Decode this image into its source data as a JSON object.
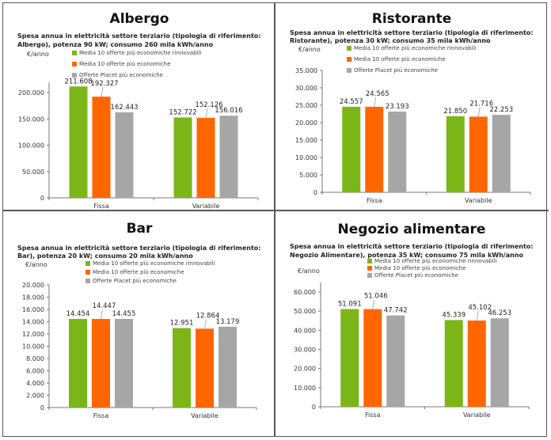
{
  "colors": {
    "green": "#7cb518",
    "orange": "#ff6600",
    "gray": "#a6a6a6"
  },
  "chart_data": [
    {
      "type": "bar",
      "title": "Albergo",
      "subtitle_line1": "Spesa annua in elettricità settore terziario (tipologia di riferimento:",
      "subtitle_line2": "Albergo), potenza 90 kW; consumo 260 mila kWh/anno",
      "ylabel": "€/anno",
      "xlabel": "",
      "categories": [
        "Fissa",
        "Variabile"
      ],
      "ylim": [
        0,
        220000
      ],
      "yticks": [
        0,
        50000,
        100000,
        150000,
        200000
      ],
      "ytick_labels": [
        "0",
        "50.000",
        "100.000",
        "150.000",
        "200.000"
      ],
      "grid": false,
      "legend_position": "top-center",
      "series": [
        {
          "name": "Media 10 offerte più economiche rinnovabili",
          "color": "green",
          "values": [
            211608,
            152722
          ],
          "labels": [
            "211.608",
            "152.722"
          ]
        },
        {
          "name": "Media 10 offerte più economiche",
          "color": "orange",
          "values": [
            192327,
            152126
          ],
          "labels": [
            "192.327",
            "152.126"
          ]
        },
        {
          "name": "Offerte Placet più economiche",
          "color": "gray",
          "values": [
            162443,
            156016
          ],
          "labels": [
            "162.443",
            "156.016"
          ]
        }
      ]
    },
    {
      "type": "bar",
      "title": "Ristorante",
      "subtitle_line1": "Spesa annua in elettricità settore terziario (tipologia di riferimento:",
      "subtitle_line2": "Ristorante), potenza 30 kW; consumo 35 mila kWh/anno",
      "ylabel": "€/anno",
      "xlabel": "",
      "categories": [
        "Fissa",
        "Variabile"
      ],
      "ylim": [
        0,
        35000
      ],
      "yticks": [
        0,
        5000,
        10000,
        15000,
        20000,
        25000,
        30000,
        35000
      ],
      "ytick_labels": [
        "0",
        "5.000",
        "10.000",
        "15.000",
        "20.000",
        "25.000",
        "30.000",
        "35.000"
      ],
      "grid": false,
      "legend_position": "top-center",
      "series": [
        {
          "name": "Media 10 offerte più economiche rinnovabili",
          "color": "green",
          "values": [
            24557,
            21850
          ],
          "labels": [
            "24.557",
            "21.850"
          ]
        },
        {
          "name": "Media 10 offerte più economiche",
          "color": "orange",
          "values": [
            24565,
            21716
          ],
          "labels": [
            "24.565",
            "21.716"
          ]
        },
        {
          "name": "Offerte Placet più economiche",
          "color": "gray",
          "values": [
            23193,
            22253
          ],
          "labels": [
            "23.193",
            "22.253"
          ]
        }
      ]
    },
    {
      "type": "bar",
      "title": "Bar",
      "subtitle_line1": "Spesa annua in elettricità settore terziario (tipologia di riferimento:",
      "subtitle_line2": "Bar), potenza 20 kW; consumo 20 mila kWh/anno",
      "ylabel": "€/anno",
      "xlabel": "",
      "categories": [
        "Fissa",
        "Variabile"
      ],
      "ylim": [
        0,
        20000
      ],
      "yticks": [
        0,
        2000,
        4000,
        6000,
        8000,
        10000,
        12000,
        14000,
        16000,
        18000,
        20000
      ],
      "ytick_labels": [
        "0",
        "2.000",
        "4.000",
        "6.000",
        "8.000",
        "10.000",
        "12.000",
        "14.000",
        "16.000",
        "18.000",
        "20.000"
      ],
      "grid": false,
      "legend_position": "top-center",
      "series": [
        {
          "name": "Media 10 offerte più economiche rinnovabili",
          "color": "green",
          "values": [
            14454,
            12951
          ],
          "labels": [
            "14.454",
            "12.951"
          ]
        },
        {
          "name": "Media 10 offerte più economiche",
          "color": "orange",
          "values": [
            14447,
            12864
          ],
          "labels": [
            "14.447",
            "12.864"
          ]
        },
        {
          "name": "Offerte Placet più economiche",
          "color": "gray",
          "values": [
            14455,
            13179
          ],
          "labels": [
            "14.455",
            "13.179"
          ]
        }
      ]
    },
    {
      "type": "bar",
      "title": "Negozio alimentare",
      "subtitle_line1": "Spesa annua in elettricità settore terziario (tipologia di riferimento:",
      "subtitle_line2": "Negozio Alimentare), potenza 35 kW; consumo 75 mila kWh/anno",
      "ylabel": "€/anno",
      "xlabel": "",
      "categories": [
        "Fissa",
        "Variabile"
      ],
      "ylim": [
        0,
        65000
      ],
      "yticks": [
        0,
        10000,
        20000,
        30000,
        40000,
        50000,
        60000
      ],
      "ytick_labels": [
        "0",
        "10.000",
        "20.000",
        "30.000",
        "40.000",
        "50.000",
        "60.000"
      ],
      "grid": false,
      "legend_position": "top-center",
      "series": [
        {
          "name": "Media 10 offerte più economiche rinnovabili",
          "color": "green",
          "values": [
            51091,
            45339
          ],
          "labels": [
            "51.091",
            "45.339"
          ]
        },
        {
          "name": "Media 10 offerte più economiche",
          "color": "orange",
          "values": [
            51046,
            45102
          ],
          "labels": [
            "51.046",
            "45.102"
          ]
        },
        {
          "name": "Offerte Placet più economiche",
          "color": "gray",
          "values": [
            47742,
            46253
          ],
          "labels": [
            "47.742",
            "46.253"
          ]
        }
      ]
    }
  ]
}
